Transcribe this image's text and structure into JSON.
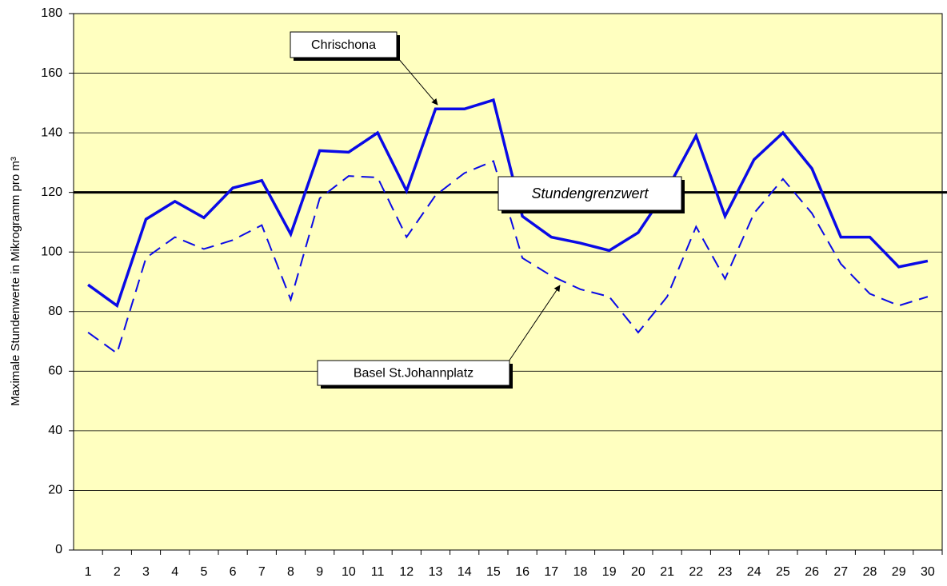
{
  "chart_data": {
    "type": "line",
    "y_label": "Maximale Stundenwerte in Mikrogramm pro m³",
    "categories": [
      "1",
      "2",
      "3",
      "4",
      "5",
      "6",
      "7",
      "8",
      "9",
      "10",
      "11",
      "12",
      "13",
      "14",
      "15",
      "16",
      "17",
      "18",
      "19",
      "20",
      "21",
      "22",
      "23",
      "24",
      "25",
      "26",
      "27",
      "28",
      "29",
      "30"
    ],
    "series": [
      {
        "name": "Chrischona",
        "color": "#0a0ae6",
        "dash": false,
        "values": [
          89,
          82,
          111,
          117,
          111.5,
          121.5,
          124,
          106,
          134,
          133.5,
          140,
          120.5,
          148,
          148,
          151,
          112,
          105,
          103,
          100.5,
          106.5,
          121,
          139,
          112,
          131,
          140,
          128,
          105,
          105,
          95,
          97
        ]
      },
      {
        "name": "Basel St.Johannplatz",
        "color": "#0a0ae6",
        "dash": true,
        "values": [
          73,
          66,
          98,
          105,
          101,
          104,
          109,
          84,
          118,
          125.5,
          125,
          105,
          119,
          126.5,
          130.5,
          98,
          92,
          87.5,
          85,
          73,
          85,
          108.5,
          91,
          113,
          124.5,
          113,
          96,
          86,
          82,
          85
        ]
      }
    ],
    "threshold": {
      "value": 120,
      "label": "Stundengrenzwert"
    },
    "ylim": [
      0,
      180
    ],
    "yticks": [
      0,
      20,
      40,
      60,
      80,
      100,
      120,
      140,
      160,
      180
    ],
    "grid": true,
    "background": "#ffffc0"
  }
}
